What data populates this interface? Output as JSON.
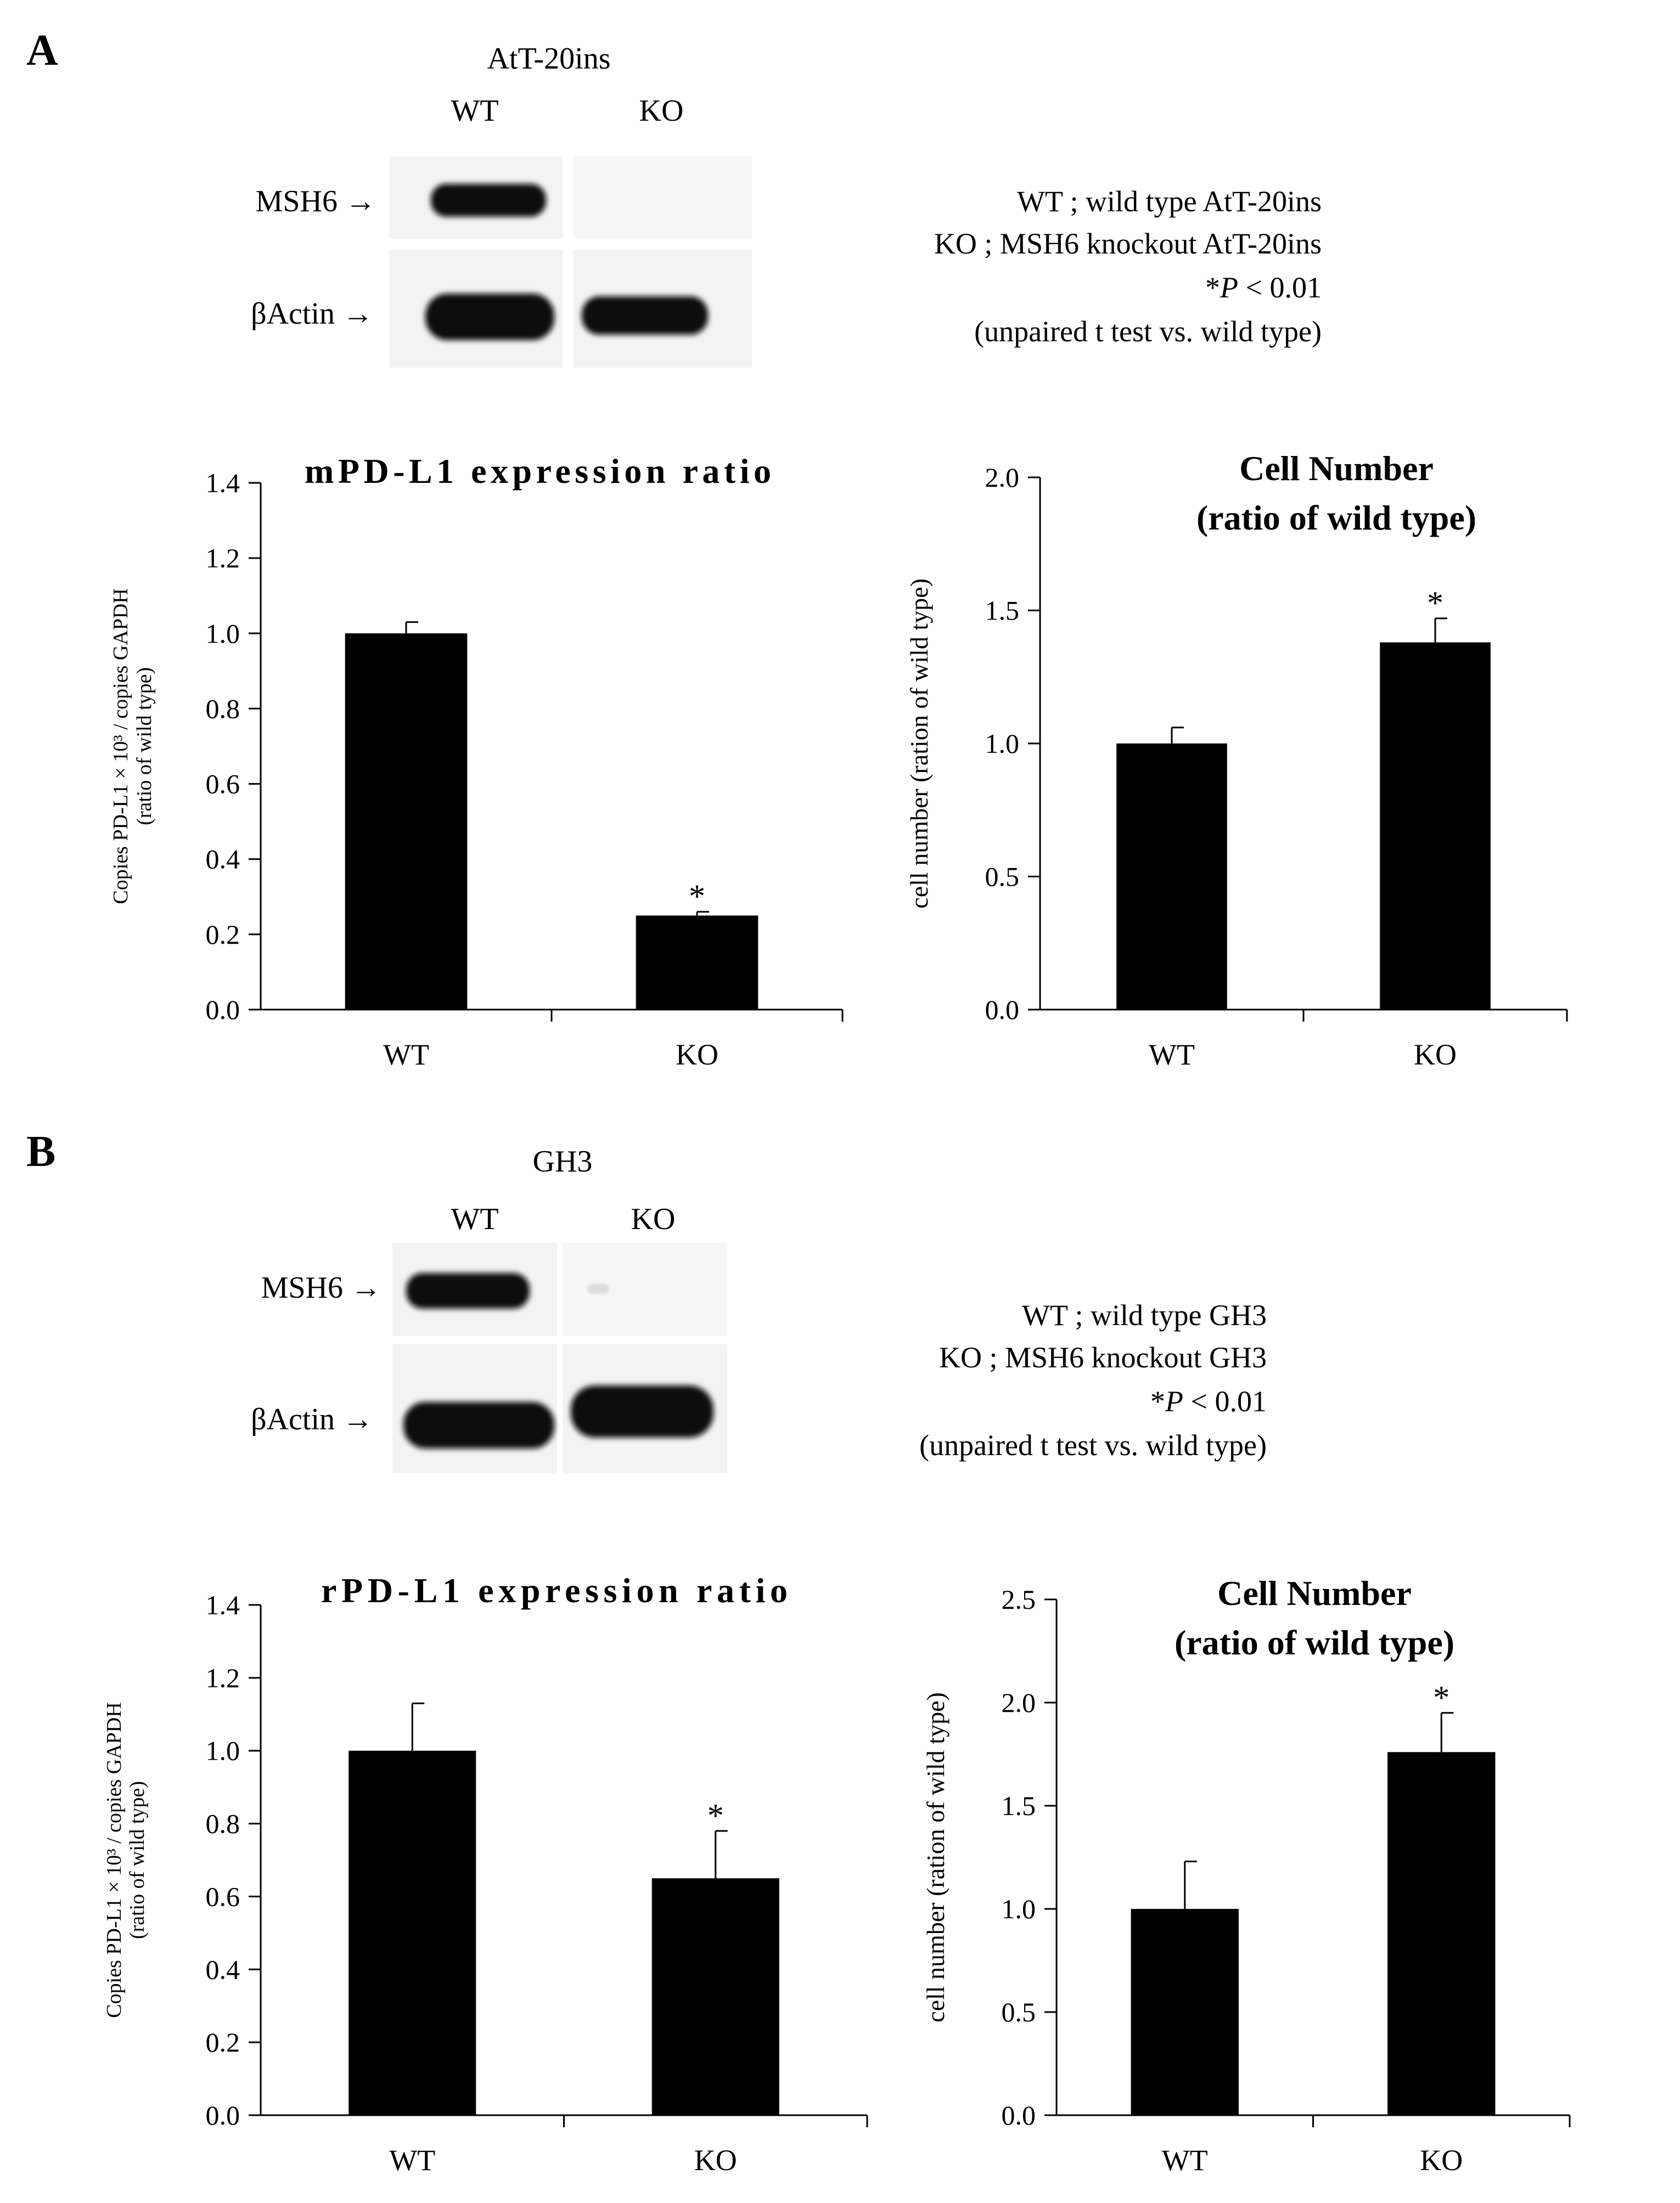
{
  "panels": [
    {
      "letter": "A",
      "blot": {
        "cell_line": "AtT-20ins",
        "lanes": [
          "WT",
          "KO"
        ],
        "proteins": [
          "MSH6 →",
          "βActin →"
        ]
      },
      "legend": [
        {
          "text": "WT ; wild type AtT-20ins"
        },
        {
          "text": "KO ; MSH6 knockout AtT-20ins"
        },
        {
          "prefix": "*",
          "italic": "P",
          "suffix": " < 0.01"
        },
        {
          "text": "(unpaired t test  vs. wild type)"
        }
      ]
    },
    {
      "letter": "B",
      "blot": {
        "cell_line": "GH3",
        "lanes": [
          "WT",
          "KO"
        ],
        "proteins": [
          "MSH6 →",
          "βActin →"
        ]
      },
      "legend": [
        {
          "text": "WT ; wild type GH3"
        },
        {
          "text": "KO ; MSH6 knockout GH3"
        },
        {
          "prefix": "*",
          "italic": "P",
          "suffix": " < 0.01"
        },
        {
          "text": "(unpaired t test  vs. wild type)"
        }
      ]
    }
  ],
  "chart_data": [
    {
      "type": "bar",
      "title": [
        "mPD-L1  expression ratio"
      ],
      "ylabel": [
        "Copies PD-L1 × 10³ / copies GAPDH",
        "(ratio of wild type)"
      ],
      "categories": [
        "WT",
        "KO"
      ],
      "values": [
        1.0,
        0.25
      ],
      "errors": [
        0.03,
        0.01
      ],
      "significance": [
        "",
        "*"
      ],
      "ylim": [
        0,
        1.4
      ],
      "yticks": [
        "0.0",
        "0.2",
        "0.4",
        "0.6",
        "0.8",
        "1.0",
        "1.2",
        "1.4"
      ],
      "grid": false,
      "color": "#000000"
    },
    {
      "type": "bar",
      "title": [
        "Cell Number",
        "(ratio of wild  type)"
      ],
      "ylabel": [
        "cell number (ration of wild type)"
      ],
      "categories": [
        "WT",
        "KO"
      ],
      "values": [
        1.0,
        1.38
      ],
      "errors": [
        0.06,
        0.09
      ],
      "significance": [
        "",
        "*"
      ],
      "ylim": [
        0,
        2.0
      ],
      "yticks": [
        "0.0",
        "0.5",
        "1.0",
        "1.5",
        "2.0"
      ],
      "grid": false,
      "color": "#000000"
    },
    {
      "type": "bar",
      "title": [
        "rPD-L1  expression ratio"
      ],
      "ylabel": [
        "Copies PD-L1 × 10³ / copies GAPDH",
        "(ratio of wild type)"
      ],
      "categories": [
        "WT",
        "KO"
      ],
      "values": [
        1.0,
        0.65
      ],
      "errors": [
        0.13,
        0.13
      ],
      "significance": [
        "",
        "*"
      ],
      "ylim": [
        0,
        1.4
      ],
      "yticks": [
        "0.0",
        "0.2",
        "0.4",
        "0.6",
        "0.8",
        "1.0",
        "1.2",
        "1.4"
      ],
      "grid": false,
      "color": "#000000"
    },
    {
      "type": "bar",
      "title": [
        "Cell Number",
        "(ratio of wild  type)"
      ],
      "ylabel": [
        "cell number (ration of wild type)"
      ],
      "categories": [
        "WT",
        "KO"
      ],
      "values": [
        1.0,
        1.76
      ],
      "errors": [
        0.23,
        0.19
      ],
      "significance": [
        "",
        "*"
      ],
      "ylim": [
        0,
        2.5
      ],
      "yticks": [
        "0.0",
        "0.5",
        "1.0",
        "1.5",
        "2.0",
        "2.5"
      ],
      "grid": false,
      "color": "#000000"
    }
  ]
}
